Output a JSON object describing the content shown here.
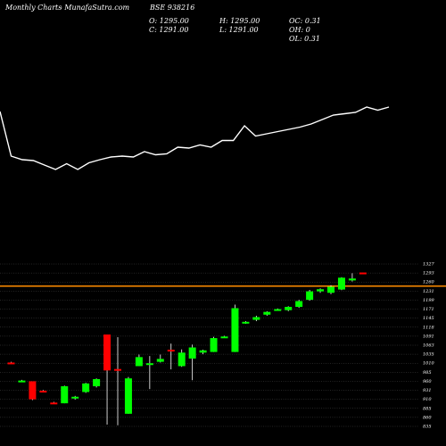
{
  "header": {
    "chart_label": "Monthly Charts",
    "source": "- MunafaSutra.com",
    "symbol": "BSE 938216"
  },
  "ohlc": {
    "open": "O: 1295.00",
    "high": "H: 1295.00",
    "oc": "OC: 0.31",
    "close": "C: 1291.00",
    "low": "L: 1291.00",
    "oh": "OH: 0",
    "ol": "OL: 0.31"
  },
  "colors": {
    "background": "#000000",
    "up": "#00ff00",
    "down": "#ff0000",
    "line": "#ffffff",
    "level": "#ff8c00",
    "grid": "#5a5a5a"
  },
  "chart_data": [
    {
      "type": "line",
      "series": [
        {
          "values": [
            1280,
            1180,
            1172,
            1170,
            1160,
            1150,
            1163,
            1150,
            1165,
            1172,
            1178,
            1180,
            1178,
            1190,
            1183,
            1185,
            1200,
            1198,
            1205,
            1200,
            1215,
            1215,
            1248,
            1225,
            1230,
            1235,
            1240,
            1245,
            1252,
            1262,
            1272,
            1275,
            1278,
            1290,
            1283,
            1290
          ]
        }
      ]
    },
    {
      "type": "candlestick",
      "y_ticks": [
        1327,
        1293,
        1260,
        1231,
        1199,
        1171,
        1145,
        1118,
        1091,
        1063,
        1035,
        1010,
        985,
        960,
        931,
        910,
        885,
        860,
        835
      ],
      "level_line": 1247,
      "candles": [
        {
          "o": 1012,
          "h": 1014,
          "l": 1008,
          "c": 1010
        },
        {
          "o": 962,
          "h": 964,
          "l": 960,
          "c": 962
        },
        {
          "o": 960,
          "h": 960,
          "l": 908,
          "c": 910
        },
        {
          "o": 930,
          "h": 932,
          "l": 926,
          "c": 928
        },
        {
          "o": 901,
          "h": 903,
          "l": 898,
          "c": 900
        },
        {
          "o": 899,
          "h": 946,
          "l": 899,
          "c": 944
        },
        {
          "o": 913,
          "h": 918,
          "l": 909,
          "c": 916
        },
        {
          "o": 927,
          "h": 955,
          "l": 925,
          "c": 953
        },
        {
          "o": 944,
          "h": 968,
          "l": 940,
          "c": 966
        },
        {
          "o": 1096,
          "h": 1096,
          "l": 840,
          "c": 990
        },
        {
          "o": 994,
          "h": 1088,
          "l": 838,
          "c": 990
        },
        {
          "o": 870,
          "h": 972,
          "l": 870,
          "c": 968
        },
        {
          "o": 1002,
          "h": 1034,
          "l": 1002,
          "c": 1027
        },
        {
          "o": 1007,
          "h": 1030,
          "l": 935,
          "c": 1010
        },
        {
          "o": 1014,
          "h": 1034,
          "l": 1012,
          "c": 1022
        },
        {
          "o": 1049,
          "h": 1068,
          "l": 993,
          "c": 1044
        },
        {
          "o": 1002,
          "h": 1050,
          "l": 1000,
          "c": 1040
        },
        {
          "o": 1023,
          "h": 1065,
          "l": 963,
          "c": 1056
        },
        {
          "o": 1040,
          "h": 1049,
          "l": 1035,
          "c": 1047
        },
        {
          "o": 1042,
          "h": 1089,
          "l": 1042,
          "c": 1085
        },
        {
          "o": 1090,
          "h": 1092,
          "l": 1088,
          "c": 1090
        },
        {
          "o": 1042,
          "h": 1185,
          "l": 1042,
          "c": 1174
        },
        {
          "o": 1132,
          "h": 1136,
          "l": 1128,
          "c": 1134
        },
        {
          "o": 1140,
          "h": 1152,
          "l": 1136,
          "c": 1148
        },
        {
          "o": 1155,
          "h": 1165,
          "l": 1152,
          "c": 1163
        },
        {
          "o": 1171,
          "h": 1173,
          "l": 1169,
          "c": 1171
        },
        {
          "o": 1168,
          "h": 1180,
          "l": 1165,
          "c": 1178
        },
        {
          "o": 1178,
          "h": 1200,
          "l": 1175,
          "c": 1196
        },
        {
          "o": 1200,
          "h": 1235,
          "l": 1197,
          "c": 1230
        },
        {
          "o": 1230,
          "h": 1240,
          "l": 1225,
          "c": 1237
        },
        {
          "o": 1225,
          "h": 1250,
          "l": 1220,
          "c": 1245
        },
        {
          "o": 1236,
          "h": 1278,
          "l": 1234,
          "c": 1276
        },
        {
          "o": 1266,
          "h": 1292,
          "l": 1262,
          "c": 1273
        },
        {
          "o": 1295,
          "h": 1295,
          "l": 1291,
          "c": 1291
        }
      ]
    }
  ]
}
